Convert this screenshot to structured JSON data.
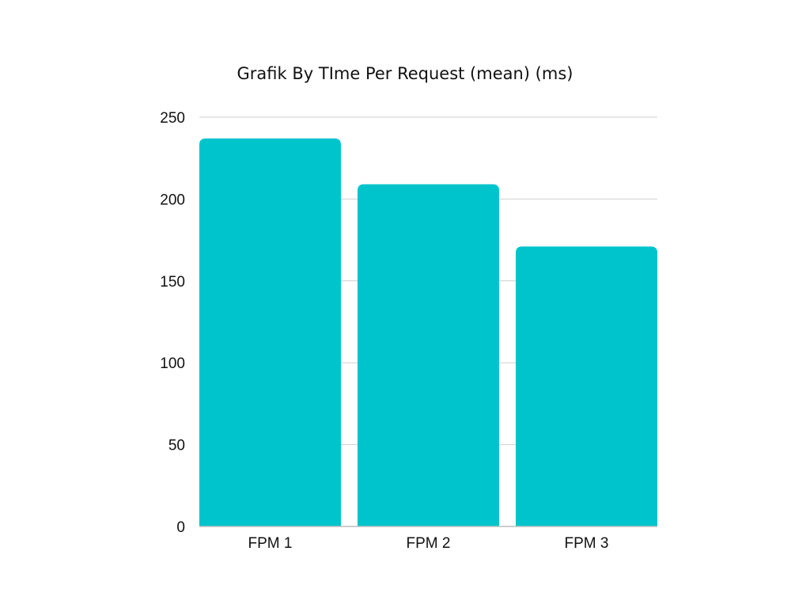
{
  "chart_data": {
    "type": "bar",
    "title": "Grafik By TIme Per Request (mean) (ms)",
    "categories": [
      "FPM 1",
      "FPM 2",
      "FPM 3"
    ],
    "values": [
      237,
      209,
      171
    ],
    "xlabel": "",
    "ylabel": "",
    "ylim": [
      0,
      250
    ],
    "yticks": [
      0,
      50,
      100,
      150,
      200,
      250
    ],
    "grid": true,
    "colors": {
      "bar": "#00c4cc"
    }
  }
}
